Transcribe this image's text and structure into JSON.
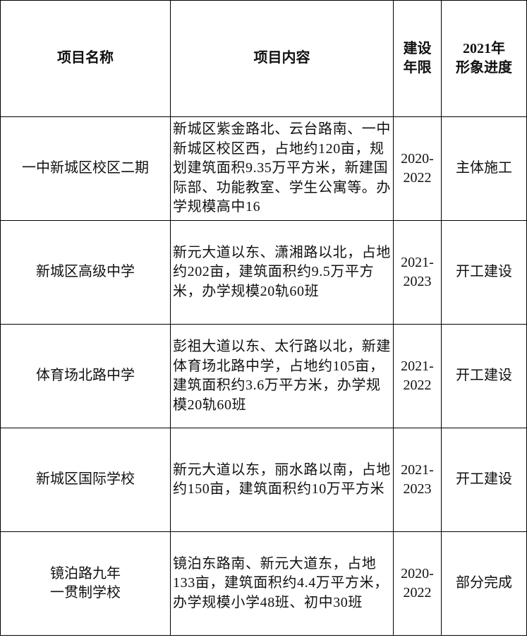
{
  "headers": {
    "name": "项目名称",
    "content": "项目内容",
    "period": "建设\n年限",
    "progress": "2021年\n形象进度"
  },
  "rows": [
    {
      "name": "一中新城区校区二期",
      "content": "新城区紫金路北、云台路南、一中新城区校区西，占地约120亩，规划建筑面积9.35万平方米，新建国际部、功能教室、学生公寓等。办学规模高中16",
      "years": "2020-2022",
      "progress": "主体施工"
    },
    {
      "name": "新城区高级中学",
      "content": "新元大道以东、潇湘路以北，占地约202亩，建筑面积约9.5万平方米，办学规模20轨60班",
      "years": "2021-2023",
      "progress": "开工建设"
    },
    {
      "name": "体育场北路中学",
      "content": "彭祖大道以东、太行路以北，新建体育场北路中学，占地约105亩，建筑面积约3.6万平方米，办学规模20轨60班",
      "years": "2021-2022",
      "progress": "开工建设"
    },
    {
      "name": "新城区国际学校",
      "content": "新元大道以东，丽水路以南，占地约150亩，建筑面积约10万平方米",
      "years": "2021-2023",
      "progress": "开工建设"
    },
    {
      "name": "镜泊路九年\n一贯制学校",
      "content": "镜泊东路南、新元大道东，占地133亩，建筑面积约4.4万平方米，办学规模小学48班、初中30班",
      "years": "2020-2022",
      "progress": "部分完成"
    }
  ]
}
